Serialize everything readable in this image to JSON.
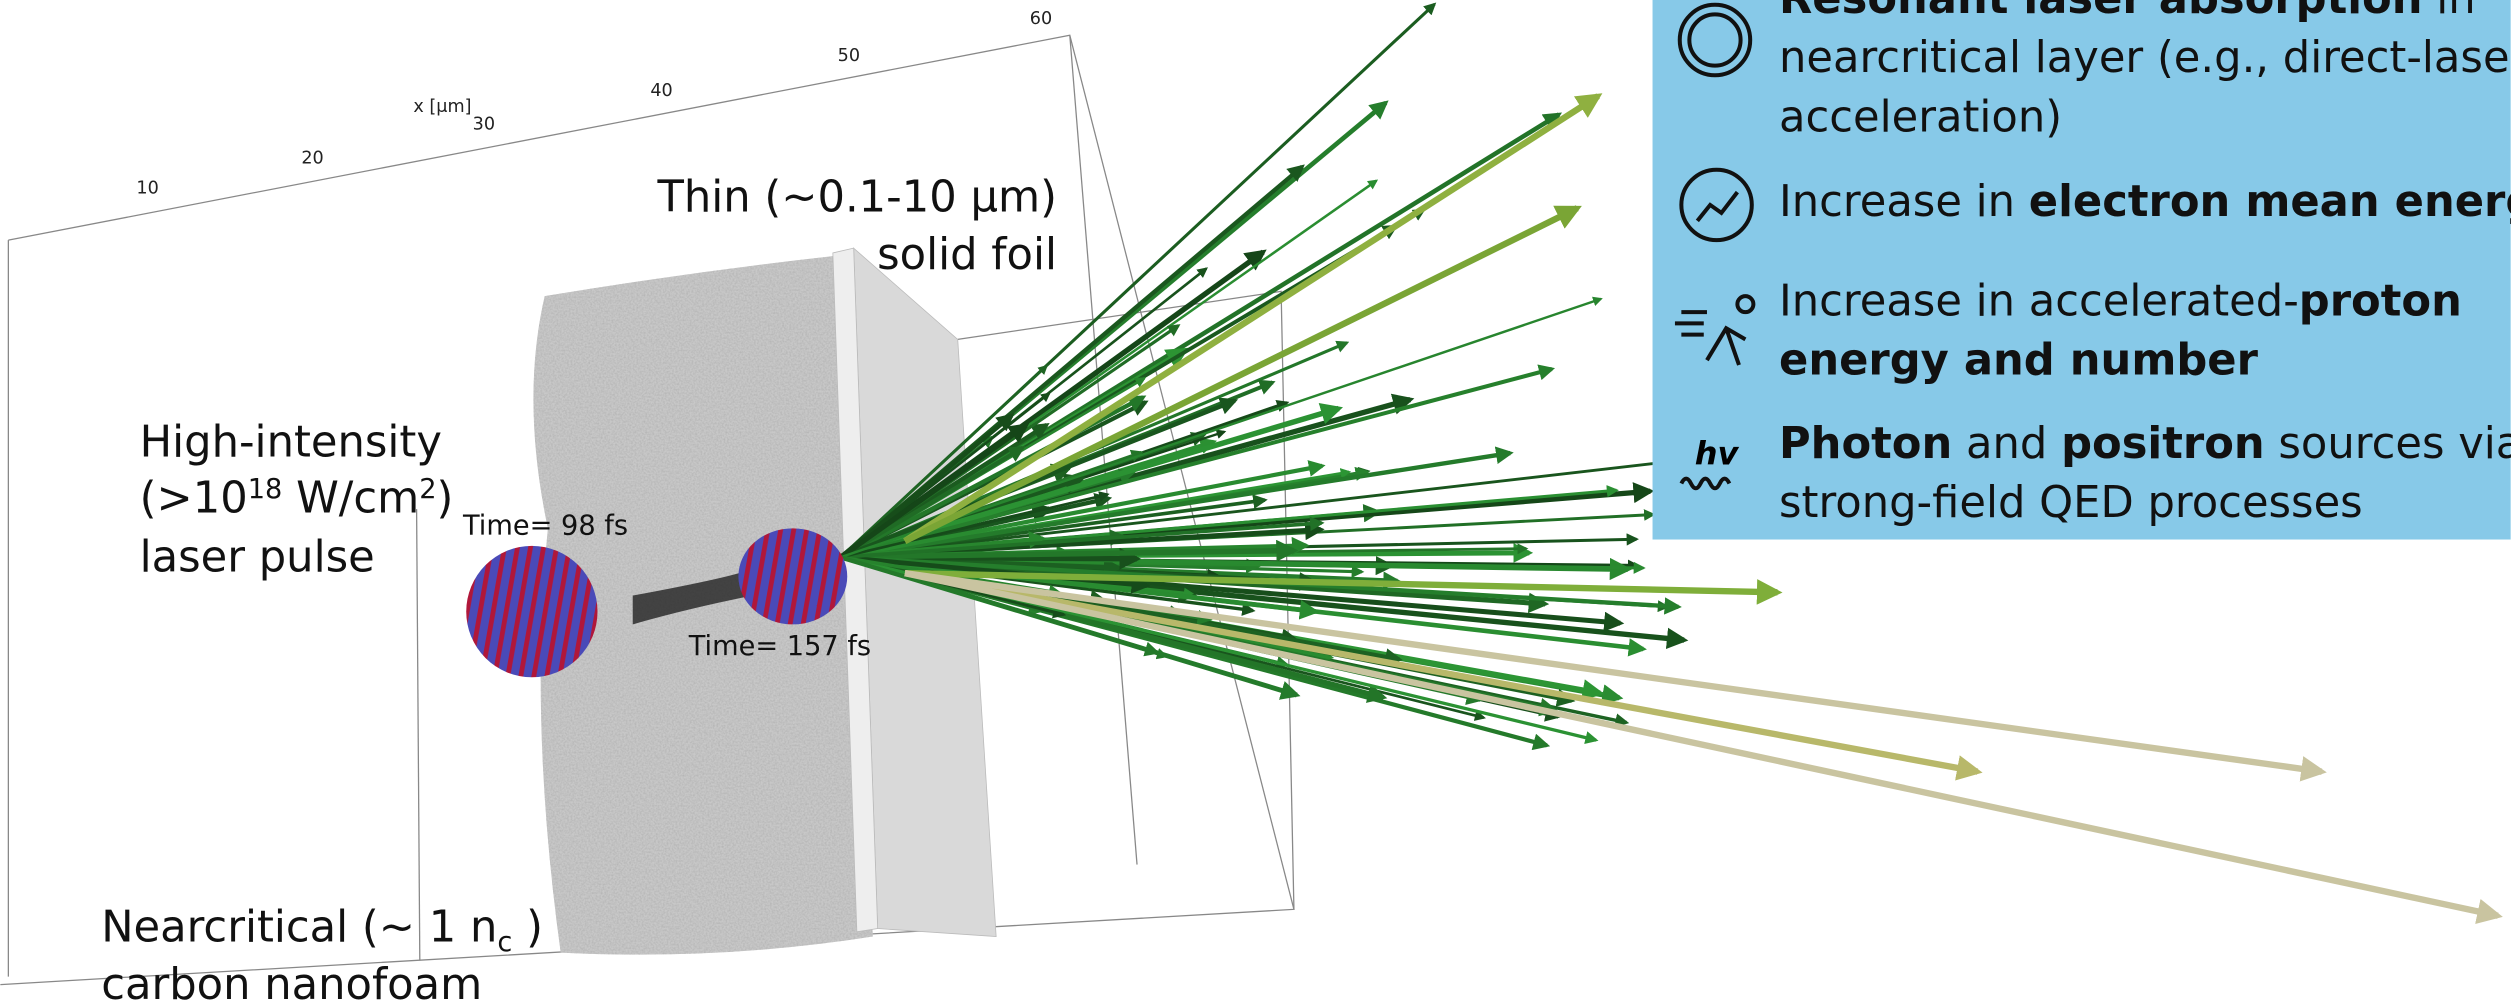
{
  "axis": {
    "label": "x [μm]",
    "ticks": [
      10,
      20,
      30,
      40,
      50,
      60
    ]
  },
  "labels": {
    "foil": [
      "Thin (~0.1-10 μm)",
      "solid foil"
    ],
    "laser": {
      "line1": "High-intensity",
      "line2": [
        "(>10",
        "18",
        " W/cm",
        "2",
        ")"
      ],
      "line3": "laser pulse"
    },
    "foam": {
      "line1": [
        "Nearcritical (~ 1 n",
        "c",
        " )"
      ],
      "line2": "carbon nanofoam"
    },
    "time1": "Time= 98 fs",
    "time2": "Time= 157 fs"
  },
  "info": {
    "items": [
      {
        "lines": [
          [
            {
              "text": "Resonant laser absorption",
              "bold": true
            },
            {
              "text": " in",
              "bold": false
            }
          ],
          [
            {
              "text": "nearcritical layer (e.g., direct-laser",
              "bold": false
            }
          ],
          [
            {
              "text": "acceleration)",
              "bold": false
            }
          ]
        ]
      },
      {
        "lines": [
          [
            {
              "text": "Increase in ",
              "bold": false
            },
            {
              "text": "electron mean energy",
              "bold": true
            }
          ]
        ]
      },
      {
        "lines": [
          [
            {
              "text": "Increase in accelerated-",
              "bold": false
            },
            {
              "text": "proton",
              "bold": true
            }
          ],
          [
            {
              "text": "energy and number",
              "bold": true
            }
          ]
        ]
      },
      {
        "lines": [
          [
            {
              "text": "Photon",
              "bold": true
            },
            {
              "text": " and ",
              "bold": false
            },
            {
              "text": "positron",
              "bold": true
            },
            {
              "text": " sources via",
              "bold": false
            }
          ],
          [
            {
              "text": "strong-field QED processes",
              "bold": false
            }
          ]
        ]
      }
    ],
    "icon_text": "hv"
  }
}
